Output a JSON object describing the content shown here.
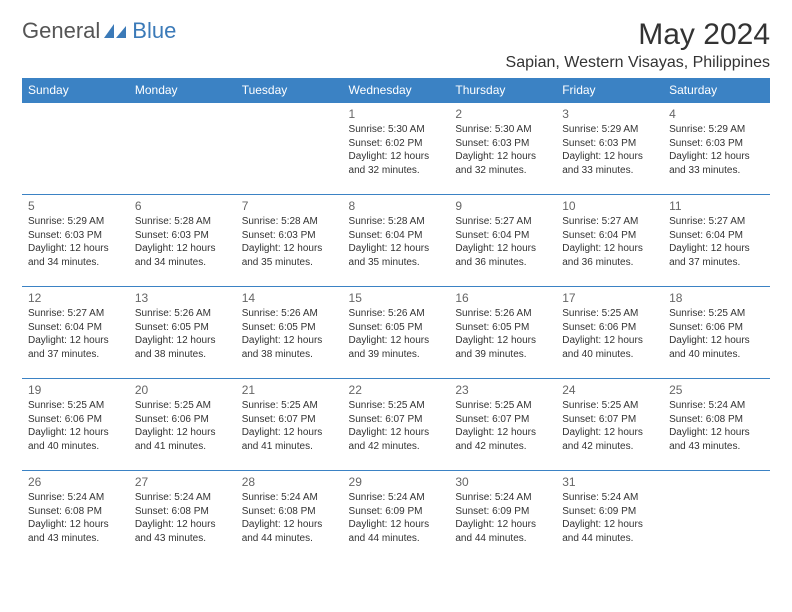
{
  "logo": {
    "text1": "General",
    "text2": "Blue"
  },
  "title": "May 2024",
  "location": "Sapian, Western Visayas, Philippines",
  "day_headers": [
    "Sunday",
    "Monday",
    "Tuesday",
    "Wednesday",
    "Thursday",
    "Friday",
    "Saturday"
  ],
  "header_bg": "#3b82c4",
  "border_color": "#3b82c4",
  "weeks": [
    [
      null,
      null,
      null,
      {
        "d": "1",
        "sr": "Sunrise: 5:30 AM",
        "ss": "Sunset: 6:02 PM",
        "dl1": "Daylight: 12 hours",
        "dl2": "and 32 minutes."
      },
      {
        "d": "2",
        "sr": "Sunrise: 5:30 AM",
        "ss": "Sunset: 6:03 PM",
        "dl1": "Daylight: 12 hours",
        "dl2": "and 32 minutes."
      },
      {
        "d": "3",
        "sr": "Sunrise: 5:29 AM",
        "ss": "Sunset: 6:03 PM",
        "dl1": "Daylight: 12 hours",
        "dl2": "and 33 minutes."
      },
      {
        "d": "4",
        "sr": "Sunrise: 5:29 AM",
        "ss": "Sunset: 6:03 PM",
        "dl1": "Daylight: 12 hours",
        "dl2": "and 33 minutes."
      }
    ],
    [
      {
        "d": "5",
        "sr": "Sunrise: 5:29 AM",
        "ss": "Sunset: 6:03 PM",
        "dl1": "Daylight: 12 hours",
        "dl2": "and 34 minutes."
      },
      {
        "d": "6",
        "sr": "Sunrise: 5:28 AM",
        "ss": "Sunset: 6:03 PM",
        "dl1": "Daylight: 12 hours",
        "dl2": "and 34 minutes."
      },
      {
        "d": "7",
        "sr": "Sunrise: 5:28 AM",
        "ss": "Sunset: 6:03 PM",
        "dl1": "Daylight: 12 hours",
        "dl2": "and 35 minutes."
      },
      {
        "d": "8",
        "sr": "Sunrise: 5:28 AM",
        "ss": "Sunset: 6:04 PM",
        "dl1": "Daylight: 12 hours",
        "dl2": "and 35 minutes."
      },
      {
        "d": "9",
        "sr": "Sunrise: 5:27 AM",
        "ss": "Sunset: 6:04 PM",
        "dl1": "Daylight: 12 hours",
        "dl2": "and 36 minutes."
      },
      {
        "d": "10",
        "sr": "Sunrise: 5:27 AM",
        "ss": "Sunset: 6:04 PM",
        "dl1": "Daylight: 12 hours",
        "dl2": "and 36 minutes."
      },
      {
        "d": "11",
        "sr": "Sunrise: 5:27 AM",
        "ss": "Sunset: 6:04 PM",
        "dl1": "Daylight: 12 hours",
        "dl2": "and 37 minutes."
      }
    ],
    [
      {
        "d": "12",
        "sr": "Sunrise: 5:27 AM",
        "ss": "Sunset: 6:04 PM",
        "dl1": "Daylight: 12 hours",
        "dl2": "and 37 minutes."
      },
      {
        "d": "13",
        "sr": "Sunrise: 5:26 AM",
        "ss": "Sunset: 6:05 PM",
        "dl1": "Daylight: 12 hours",
        "dl2": "and 38 minutes."
      },
      {
        "d": "14",
        "sr": "Sunrise: 5:26 AM",
        "ss": "Sunset: 6:05 PM",
        "dl1": "Daylight: 12 hours",
        "dl2": "and 38 minutes."
      },
      {
        "d": "15",
        "sr": "Sunrise: 5:26 AM",
        "ss": "Sunset: 6:05 PM",
        "dl1": "Daylight: 12 hours",
        "dl2": "and 39 minutes."
      },
      {
        "d": "16",
        "sr": "Sunrise: 5:26 AM",
        "ss": "Sunset: 6:05 PM",
        "dl1": "Daylight: 12 hours",
        "dl2": "and 39 minutes."
      },
      {
        "d": "17",
        "sr": "Sunrise: 5:25 AM",
        "ss": "Sunset: 6:06 PM",
        "dl1": "Daylight: 12 hours",
        "dl2": "and 40 minutes."
      },
      {
        "d": "18",
        "sr": "Sunrise: 5:25 AM",
        "ss": "Sunset: 6:06 PM",
        "dl1": "Daylight: 12 hours",
        "dl2": "and 40 minutes."
      }
    ],
    [
      {
        "d": "19",
        "sr": "Sunrise: 5:25 AM",
        "ss": "Sunset: 6:06 PM",
        "dl1": "Daylight: 12 hours",
        "dl2": "and 40 minutes."
      },
      {
        "d": "20",
        "sr": "Sunrise: 5:25 AM",
        "ss": "Sunset: 6:06 PM",
        "dl1": "Daylight: 12 hours",
        "dl2": "and 41 minutes."
      },
      {
        "d": "21",
        "sr": "Sunrise: 5:25 AM",
        "ss": "Sunset: 6:07 PM",
        "dl1": "Daylight: 12 hours",
        "dl2": "and 41 minutes."
      },
      {
        "d": "22",
        "sr": "Sunrise: 5:25 AM",
        "ss": "Sunset: 6:07 PM",
        "dl1": "Daylight: 12 hours",
        "dl2": "and 42 minutes."
      },
      {
        "d": "23",
        "sr": "Sunrise: 5:25 AM",
        "ss": "Sunset: 6:07 PM",
        "dl1": "Daylight: 12 hours",
        "dl2": "and 42 minutes."
      },
      {
        "d": "24",
        "sr": "Sunrise: 5:25 AM",
        "ss": "Sunset: 6:07 PM",
        "dl1": "Daylight: 12 hours",
        "dl2": "and 42 minutes."
      },
      {
        "d": "25",
        "sr": "Sunrise: 5:24 AM",
        "ss": "Sunset: 6:08 PM",
        "dl1": "Daylight: 12 hours",
        "dl2": "and 43 minutes."
      }
    ],
    [
      {
        "d": "26",
        "sr": "Sunrise: 5:24 AM",
        "ss": "Sunset: 6:08 PM",
        "dl1": "Daylight: 12 hours",
        "dl2": "and 43 minutes."
      },
      {
        "d": "27",
        "sr": "Sunrise: 5:24 AM",
        "ss": "Sunset: 6:08 PM",
        "dl1": "Daylight: 12 hours",
        "dl2": "and 43 minutes."
      },
      {
        "d": "28",
        "sr": "Sunrise: 5:24 AM",
        "ss": "Sunset: 6:08 PM",
        "dl1": "Daylight: 12 hours",
        "dl2": "and 44 minutes."
      },
      {
        "d": "29",
        "sr": "Sunrise: 5:24 AM",
        "ss": "Sunset: 6:09 PM",
        "dl1": "Daylight: 12 hours",
        "dl2": "and 44 minutes."
      },
      {
        "d": "30",
        "sr": "Sunrise: 5:24 AM",
        "ss": "Sunset: 6:09 PM",
        "dl1": "Daylight: 12 hours",
        "dl2": "and 44 minutes."
      },
      {
        "d": "31",
        "sr": "Sunrise: 5:24 AM",
        "ss": "Sunset: 6:09 PM",
        "dl1": "Daylight: 12 hours",
        "dl2": "and 44 minutes."
      },
      null
    ]
  ]
}
